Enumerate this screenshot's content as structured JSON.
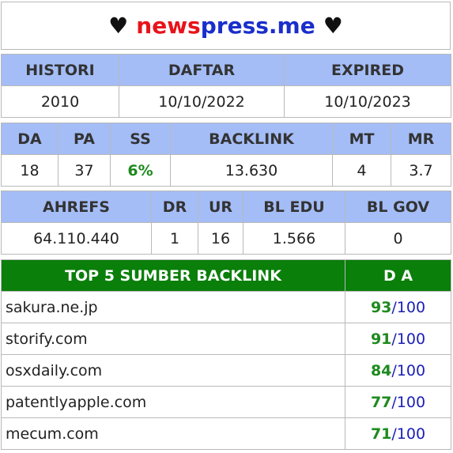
{
  "header": {
    "heart": "♥",
    "domain_part1": "news",
    "domain_part2": "press",
    "domain_part3": ".me"
  },
  "info": {
    "headers": [
      "HISTORI",
      "DAFTAR",
      "EXPIRED"
    ],
    "values": [
      "2010",
      "10/10/2022",
      "10/10/2023"
    ]
  },
  "metrics": {
    "headers": [
      "DA",
      "PA",
      "SS",
      "BACKLINK",
      "MT",
      "MR"
    ],
    "values": [
      "18",
      "37",
      "6%",
      "13.630",
      "4",
      "3.7"
    ]
  },
  "ahrefs": {
    "headers": [
      "AHREFS",
      "DR",
      "UR",
      "BL EDU",
      "BL GOV"
    ],
    "values": [
      "64.110.440",
      "1",
      "16",
      "1.566",
      "0"
    ]
  },
  "sources": {
    "title": "TOP 5 SUMBER BACKLINK",
    "da_header": "D A",
    "max": "/100",
    "rows": [
      {
        "name": "sakura.ne.jp",
        "da": "93"
      },
      {
        "name": "storify.com",
        "da": "91"
      },
      {
        "name": "osxdaily.com",
        "da": "84"
      },
      {
        "name": "patentlyapple.com",
        "da": "77"
      },
      {
        "name": "mecum.com",
        "da": "71"
      }
    ]
  },
  "colors": {
    "header_bg": "#a4bdf7",
    "section_bg": "#0a7f0a",
    "accent_red": "#e8131a",
    "accent_blue": "#1a2ecc",
    "good_green": "#1e8a1e"
  }
}
